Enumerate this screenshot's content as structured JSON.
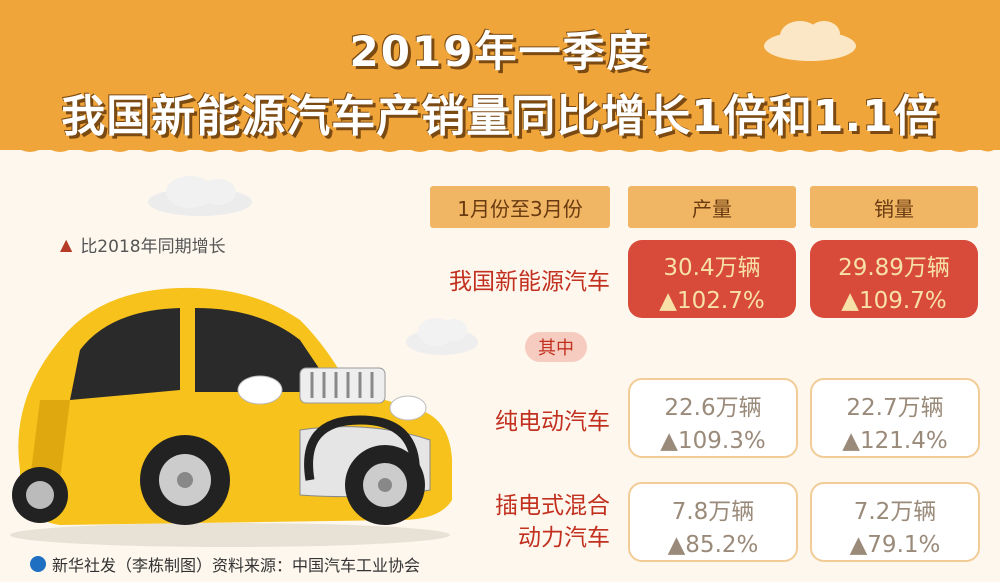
{
  "title": {
    "line1": "2019年一季度",
    "line2": "我国新能源汽车产销量同比增长1倍和1.1倍"
  },
  "legend": {
    "marker": "▲",
    "text": "比2018年同期增长"
  },
  "headers": {
    "period": "1月份至3月份",
    "production": "产量",
    "sales": "销量"
  },
  "rows": [
    {
      "label": "我国新能源汽车",
      "production": "30.4万辆",
      "production_growth": "▲102.7%",
      "sales": "29.89万辆",
      "sales_growth": "▲109.7%"
    },
    {
      "label": "纯电动汽车",
      "production": "22.6万辆",
      "production_growth": "▲109.3%",
      "sales": "22.7万辆",
      "sales_growth": "▲121.4%"
    },
    {
      "label_line1": "插电式混合",
      "label_line2": "动力汽车",
      "production": "7.8万辆",
      "production_growth": "▲85.2%",
      "sales": "7.2万辆",
      "sales_growth": "▲79.1%"
    }
  ],
  "qizhong": "其中",
  "footer": "新华社发（李栋制图）资料来源：中国汽车工业协会",
  "colors": {
    "banner": "#f0a53a",
    "highlight_box": "#d84a3a",
    "label_red": "#c2301f",
    "car_yellow": "#f6c21b"
  }
}
